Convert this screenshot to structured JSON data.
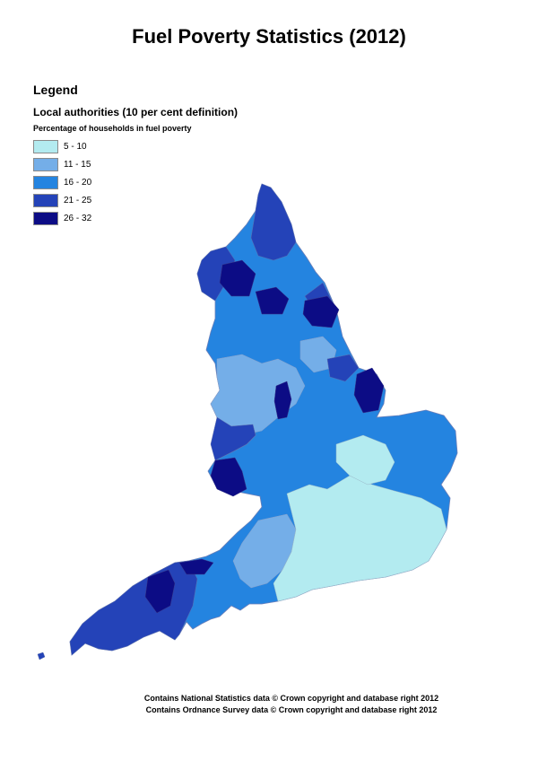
{
  "title": "Fuel Poverty Statistics (2012)",
  "legend": {
    "heading": "Legend",
    "subtitle": "Local authorities (10 per cent definition)",
    "caption": "Percentage of households in fuel poverty",
    "classes": [
      {
        "label": "5 - 10",
        "color": "#b3ebf0"
      },
      {
        "label": "11 - 15",
        "color": "#74aee8"
      },
      {
        "label": "16 - 20",
        "color": "#2484e0"
      },
      {
        "label": "21 - 25",
        "color": "#2443b8"
      },
      {
        "label": "26 - 32",
        "color": "#0c0c85"
      }
    ]
  },
  "credits": {
    "line1": "Contains National Statistics data © Crown copyright and database right 2012",
    "line2": "Contains Ordnance Survey data © Crown copyright and database right 2012"
  }
}
